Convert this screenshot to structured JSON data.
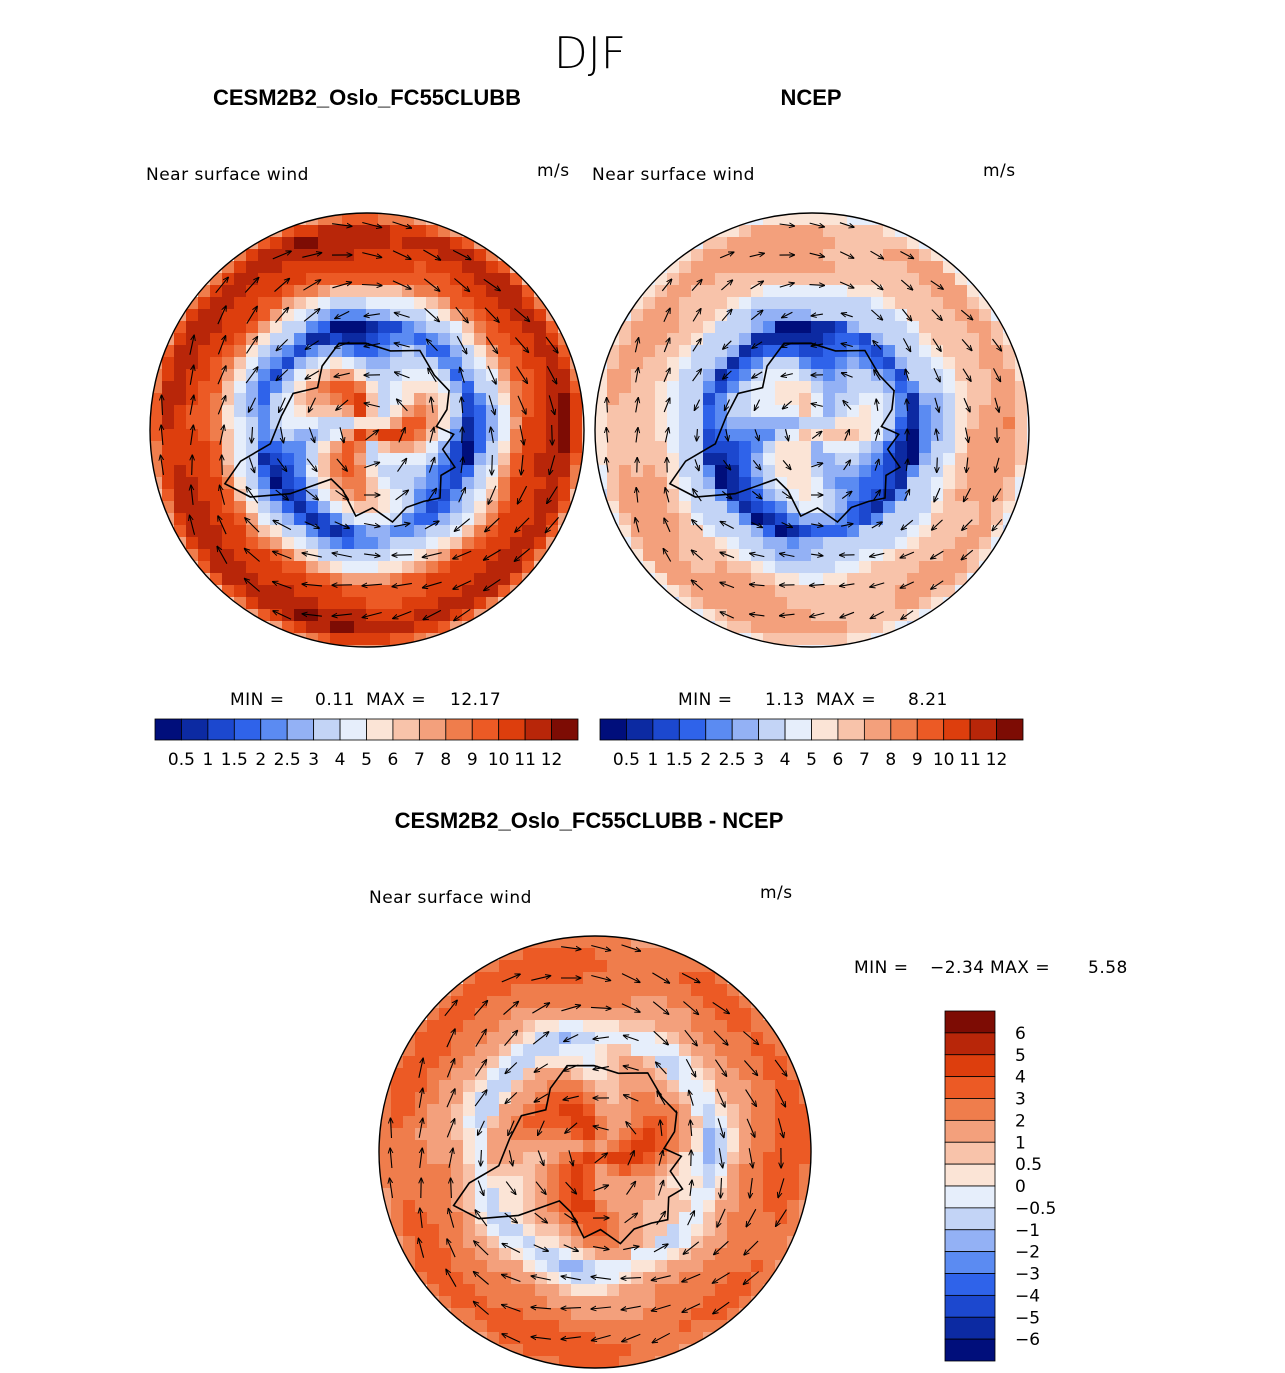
{
  "season": "DJF",
  "colors": {
    "full": [
      "#000e7b",
      "#0c2aa2",
      "#1c48cf",
      "#2f63ea",
      "#5b8bf2",
      "#93b1f5",
      "#c3d4f6",
      "#e6eefb",
      "#fbe4d6",
      "#f8c3aa",
      "#f3a07c",
      "#ef7d4c",
      "#ec5a25",
      "#dd3e0d",
      "#b82609",
      "#7d0c04"
    ],
    "diff": [
      "#000e7b",
      "#0c2aa2",
      "#1c48cf",
      "#2f63ea",
      "#5b8bf2",
      "#93b1f5",
      "#c3d4f6",
      "#e6eefb",
      "#fbe4d6",
      "#f8c3aa",
      "#f3a07c",
      "#ef7d4c",
      "#ec5a25",
      "#dd3e0d",
      "#b82609",
      "#7d0c04"
    ]
  },
  "chart_data": [
    {
      "type": "heatmap",
      "subtype": "south-polar-stereographic contour map with wind vectors",
      "title": "CESM2B2_Oslo_FC55CLUBB",
      "variable": "Near surface wind",
      "units": "m/s",
      "min": "0.11",
      "max": "12.17",
      "min_label": "MIN =",
      "max_label": "MAX =",
      "min_value": 0.11,
      "max_value": 12.17,
      "colorbar_orientation": "horizontal",
      "levels": [
        "0.5",
        "1",
        "1.5",
        "2",
        "2.5",
        "3",
        "4",
        "5",
        "6",
        "7",
        "8",
        "9",
        "10",
        "11",
        "12"
      ],
      "pattern": {
        "ring_outer": 11,
        "ring_mid": 8,
        "trough": 2,
        "interior": 7,
        "interior_amp": 3
      }
    },
    {
      "type": "heatmap",
      "subtype": "south-polar-stereographic contour map with wind vectors",
      "title": "NCEP",
      "variable": "Near surface wind",
      "units": "m/s",
      "min": "1.13",
      "max": "8.21",
      "min_label": "MIN =",
      "max_label": "MAX =",
      "min_value": 1.13,
      "max_value": 8.21,
      "colorbar_orientation": "horizontal",
      "levels": [
        "0.5",
        "1",
        "1.5",
        "2",
        "2.5",
        "3",
        "4",
        "5",
        "6",
        "7",
        "8",
        "9",
        "10",
        "11",
        "12"
      ],
      "pattern": {
        "ring_outer": 7,
        "ring_mid": 5.5,
        "trough": 2.8,
        "interior": 4.5,
        "interior_amp": 1.5
      }
    },
    {
      "type": "heatmap",
      "subtype": "south-polar-stereographic difference contour map with wind vectors",
      "title": "CESM2B2_Oslo_FC55CLUBB - NCEP",
      "variable": "Near surface wind",
      "units": "m/s",
      "min": "−2.34",
      "max": "5.58",
      "min_label": "MIN =",
      "max_label": "MAX =",
      "min_value": -2.34,
      "max_value": 5.58,
      "colorbar_orientation": "vertical",
      "levels": [
        "6",
        "5",
        "4",
        "3",
        "2",
        "1",
        "0.5",
        "0",
        "−0.5",
        "−1",
        "−2",
        "−3",
        "−4",
        "−5",
        "−6"
      ],
      "pattern": {
        "ring_outer": 3.2,
        "ring_mid": 1.5,
        "trough": -0.8,
        "interior": 3.0,
        "interior_amp": 1.5
      }
    }
  ]
}
